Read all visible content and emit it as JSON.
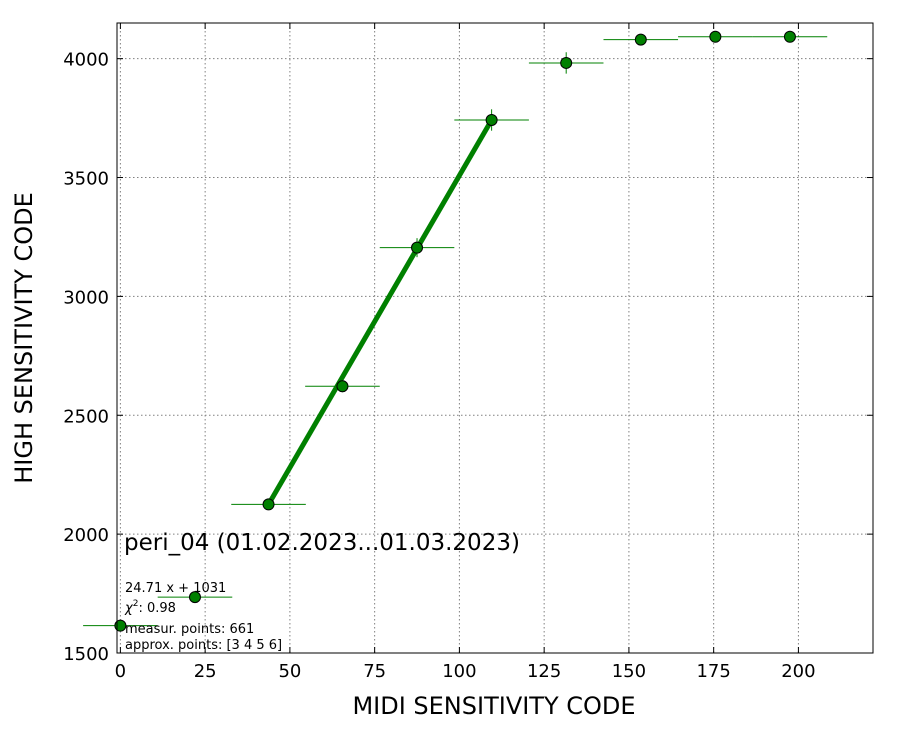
{
  "chart_data": {
    "type": "scatter",
    "xlabel": "MIDI SENSITIVITY CODE",
    "ylabel": "HIGH SENSITIVITY CODE",
    "xlim": [
      -1,
      222
    ],
    "ylim": [
      1500,
      4150
    ],
    "x_ticks": [
      0,
      25,
      50,
      75,
      100,
      125,
      150,
      175,
      200
    ],
    "y_ticks": [
      1500,
      2000,
      2500,
      3000,
      3500,
      4000
    ],
    "grid": true,
    "series": [
      {
        "type": "scatter",
        "color": "#008000",
        "edge_color": "#000000",
        "points": [
          {
            "x": 0,
            "y": 1615,
            "xerr": 11,
            "yerr": 0
          },
          {
            "x": 22,
            "y": 1735,
            "xerr": 11,
            "yerr": 0
          },
          {
            "x": 43.7,
            "y": 2125,
            "xerr": 11,
            "yerr": 15
          },
          {
            "x": 65.5,
            "y": 2622,
            "xerr": 11,
            "yerr": 25
          },
          {
            "x": 87.5,
            "y": 3205,
            "xerr": 11,
            "yerr": 40
          },
          {
            "x": 109.5,
            "y": 3742,
            "xerr": 11,
            "yerr": 45
          },
          {
            "x": 131.5,
            "y": 3982,
            "xerr": 11,
            "yerr": 45
          },
          {
            "x": 153.5,
            "y": 4080,
            "xerr": 11,
            "yerr": 5
          },
          {
            "x": 175.5,
            "y": 4092,
            "xerr": 11,
            "yerr": 5
          },
          {
            "x": 197.5,
            "y": 4092,
            "xerr": 11,
            "yerr": 5
          }
        ]
      },
      {
        "type": "line",
        "color": "#008000",
        "x": [
          43.7,
          109.5
        ],
        "y": [
          2125,
          3742
        ]
      }
    ],
    "annotations": {
      "title": "peri_04 (01.02.2023...01.03.2023)",
      "fit": "24.71 x + 1031",
      "chi2_symbol": "χ",
      "chi2_exp": "2",
      "chi2_value": ": 0.98",
      "measur": "measur. points: 661",
      "approx": "approx. points: [3 4 5 6]"
    }
  }
}
